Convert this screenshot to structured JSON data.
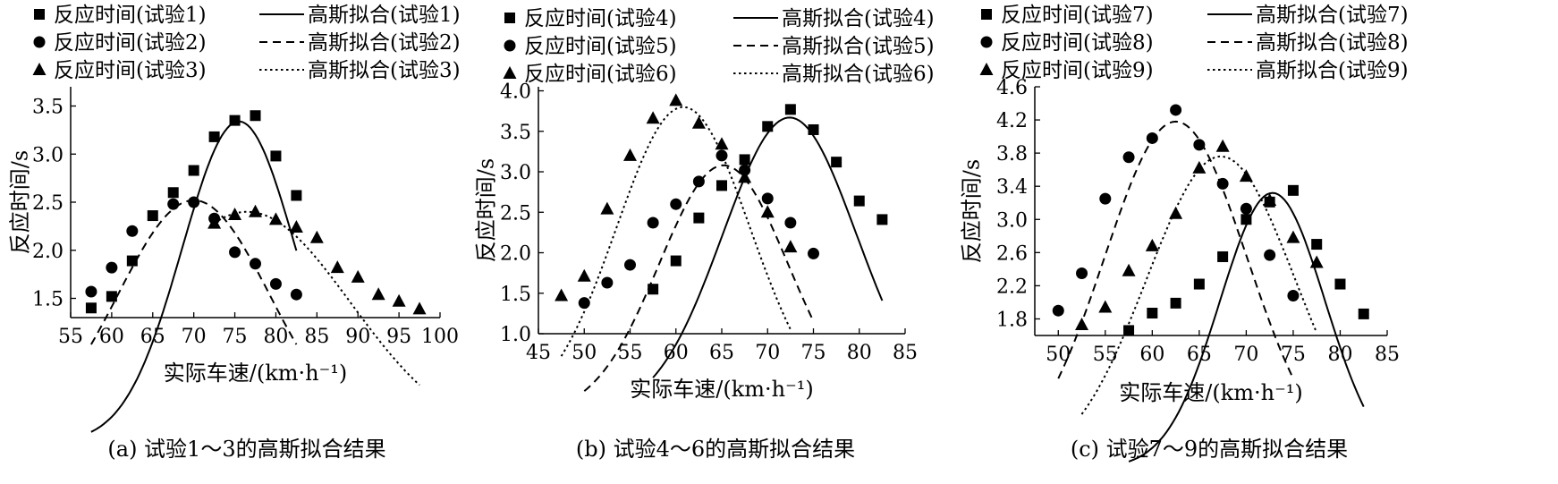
{
  "chart_data": [
    {
      "type": "scatter",
      "caption": "(a) 试验1～3的高斯拟合结果",
      "xlabel": "实际车速/(km·h⁻¹)",
      "ylabel": "反应时间/s",
      "xlim": [
        55,
        100
      ],
      "ylim": [
        1.3,
        3.7
      ],
      "xticks": [
        "55",
        "60",
        "65",
        "70",
        "75",
        "80",
        "85",
        "90",
        "95",
        "100"
      ],
      "yticks": [
        "1.5",
        "2.0",
        "2.5",
        "3.0",
        "3.5"
      ],
      "legend_position": "top",
      "series": [
        {
          "name": "反应时间(试验1)",
          "marker": "square",
          "fit_name": "高斯拟合(试验1)",
          "fit_style": "solid",
          "x": [
            57.5,
            60,
            62.5,
            65,
            67.5,
            70,
            72.5,
            75,
            77.5,
            80,
            82.5
          ],
          "y": [
            1.4,
            1.52,
            1.89,
            2.36,
            2.6,
            2.83,
            3.18,
            3.35,
            3.4,
            2.98,
            2.57
          ],
          "fit": {
            "a": 3.34,
            "mu": 75.5,
            "sigma": 6.9,
            "x0": 57.5,
            "x1": 82.5
          }
        },
        {
          "name": "反应时间(试验2)",
          "marker": "circle",
          "fit_name": "高斯拟合(试验2)",
          "fit_style": "dashed",
          "x": [
            57.5,
            60,
            62.5,
            67.5,
            70,
            72.5,
            75,
            77.5,
            80,
            82.5
          ],
          "y": [
            1.57,
            1.82,
            2.2,
            2.48,
            2.5,
            2.33,
            1.98,
            1.86,
            1.65,
            1.54
          ],
          "fit": {
            "a": 2.52,
            "mu": 70.0,
            "sigma": 9.3,
            "x0": 57.5,
            "x1": 82.5
          }
        },
        {
          "name": "反应时间(试验3)",
          "marker": "triangle",
          "fit_name": "高斯拟合(试验3)",
          "fit_style": "dotted",
          "x": [
            72.5,
            75,
            77.5,
            80,
            82.5,
            85,
            87.5,
            90,
            92.5,
            95,
            97.5
          ],
          "y": [
            2.28,
            2.37,
            2.4,
            2.32,
            2.24,
            2.13,
            1.82,
            1.72,
            1.54,
            1.47,
            1.39
          ],
          "fit": {
            "a": 2.4,
            "mu": 76.5,
            "sigma": 12.6,
            "x0": 72.5,
            "x1": 97.5
          }
        }
      ]
    },
    {
      "type": "scatter",
      "caption": "(b) 试验4～6的高斯拟合结果",
      "xlabel": "实际车速/(km·h⁻¹)",
      "ylabel": "反应时间/s",
      "xlim": [
        45,
        85
      ],
      "ylim": [
        1.0,
        4.05
      ],
      "xticks": [
        "45",
        "50",
        "55",
        "60",
        "65",
        "70",
        "75",
        "80",
        "85"
      ],
      "yticks": [
        "1.0",
        "1.5",
        "2.0",
        "2.5",
        "3.0",
        "3.5",
        "4.0"
      ],
      "legend_position": "top",
      "series": [
        {
          "name": "反应时间(试验4)",
          "marker": "square",
          "fit_name": "高斯拟合(试验4)",
          "fit_style": "solid",
          "x": [
            57.5,
            60,
            62.5,
            65,
            67.5,
            70,
            72.5,
            75,
            77.5,
            80,
            82.5
          ],
          "y": [
            1.55,
            1.9,
            2.43,
            2.83,
            3.15,
            3.56,
            3.77,
            3.52,
            3.12,
            2.64,
            2.41
          ],
          "fit": {
            "a": 3.67,
            "mu": 72.4,
            "sigma": 7.3,
            "x0": 57.5,
            "x1": 82.5
          }
        },
        {
          "name": "反应时间(试验5)",
          "marker": "circle",
          "fit_name": "高斯拟合(试验5)",
          "fit_style": "dashed",
          "x": [
            50,
            52.5,
            55,
            57.5,
            60,
            62.5,
            65,
            67.5,
            70,
            72.5,
            75
          ],
          "y": [
            1.38,
            1.63,
            1.85,
            2.37,
            2.6,
            2.88,
            3.2,
            3.02,
            2.67,
            2.37,
            1.99
          ],
          "fit": {
            "a": 3.08,
            "mu": 65.2,
            "sigma": 7.0,
            "x0": 50,
            "x1": 75
          }
        },
        {
          "name": "反应时间(试验6)",
          "marker": "triangle",
          "fit_name": "高斯拟合(试验6)",
          "fit_style": "dotted",
          "x": [
            47.5,
            50,
            52.5,
            55,
            57.5,
            60,
            62.5,
            65,
            67.5,
            70,
            72.5
          ],
          "y": [
            1.47,
            1.71,
            2.54,
            3.2,
            3.66,
            3.88,
            3.6,
            3.34,
            2.93,
            2.5,
            2.07
          ],
          "fit": {
            "a": 3.8,
            "mu": 60.8,
            "sigma": 7.3,
            "x0": 47.5,
            "x1": 72.5
          }
        }
      ]
    },
    {
      "type": "scatter",
      "caption": "(c) 试验7～9的高斯拟合结果",
      "xlabel": "实际车速/(km·h⁻¹)",
      "ylabel": "反应时间/s",
      "xlim": [
        47.5,
        85
      ],
      "ylim": [
        1.6,
        4.6
      ],
      "xticks": [
        "50",
        "55",
        "60",
        "65",
        "70",
        "75",
        "80",
        "85"
      ],
      "yticks": [
        "1.8",
        "2.2",
        "2.6",
        "3.0",
        "3.4",
        "3.8",
        "4.2",
        "4.6"
      ],
      "legend_position": "top",
      "series": [
        {
          "name": "反应时间(试验7)",
          "marker": "square",
          "fit_name": "高斯拟合(试验7)",
          "fit_style": "solid",
          "x": [
            57.5,
            60,
            62.5,
            65,
            67.5,
            70,
            72.5,
            75,
            77.5,
            80,
            82.5
          ],
          "y": [
            1.66,
            1.87,
            1.99,
            2.22,
            2.55,
            3.0,
            3.21,
            3.35,
            2.7,
            2.22,
            1.86
          ],
          "fit": {
            "a": 3.32,
            "mu": 72.8,
            "sigma": 5.6,
            "x0": 57.5,
            "x1": 82.5
          }
        },
        {
          "name": "反应时间(试验8)",
          "marker": "circle",
          "fit_name": "高斯拟合(试验8)",
          "fit_style": "dashed",
          "x": [
            50,
            52.5,
            55,
            57.5,
            60,
            62.5,
            65,
            67.5,
            70,
            72.5,
            75
          ],
          "y": [
            1.9,
            2.35,
            3.25,
            3.75,
            3.98,
            4.32,
            3.9,
            3.43,
            3.13,
            2.57,
            2.08
          ],
          "fit": {
            "a": 4.18,
            "mu": 62.5,
            "sigma": 7.6,
            "x0": 50,
            "x1": 75
          }
        },
        {
          "name": "反应时间(试验9)",
          "marker": "triangle",
          "fit_name": "高斯拟合(试验9)",
          "fit_style": "dotted",
          "x": [
            52.5,
            55,
            57.5,
            60,
            62.5,
            65,
            67.5,
            70,
            72.5,
            75,
            77.5
          ],
          "y": [
            1.73,
            1.94,
            2.38,
            2.68,
            3.07,
            3.62,
            3.88,
            3.52,
            3.23,
            2.78,
            2.48
          ],
          "fit": {
            "a": 3.76,
            "mu": 67.3,
            "sigma": 7.9,
            "x0": 52.5,
            "x1": 77.5
          }
        }
      ]
    }
  ]
}
